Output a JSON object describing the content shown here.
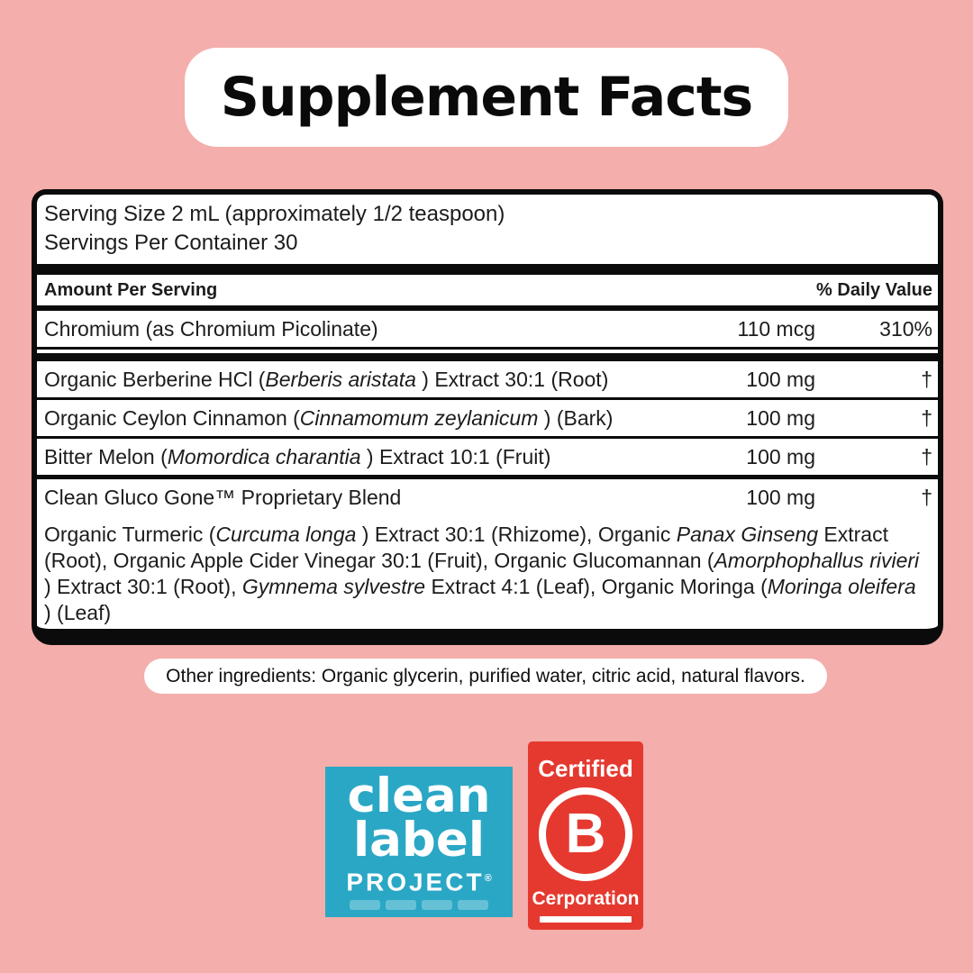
{
  "colors": {
    "background": "#F4AEAB",
    "panel_bg": "#FFFFFF",
    "panel_border": "#0B0B0B",
    "text": "#1C1C1C",
    "clean_label_bg": "#2AA7C5",
    "bcorp_bg": "#E5392F",
    "badge_text": "#FFFFFF"
  },
  "header": {
    "title": "Supplement Facts"
  },
  "panel": {
    "serving_size": "Serving Size 2 mL (approximately 1/2 teaspoon)",
    "servings_per_container": "Servings Per Container 30",
    "amount_header": "Amount Per Serving",
    "dv_header": "% Daily Value",
    "rows": [
      {
        "name_segments": [
          {
            "t": "Chromium (as Chromium Picolinate)"
          }
        ],
        "amount": "110 mcg",
        "dv": "310%"
      },
      {
        "name_segments": [
          {
            "t": "Organic Berberine HCl ("
          },
          {
            "t": "Berberis aristata",
            "i": true
          },
          {
            "t": " ) Extract 30:1 (Root)"
          }
        ],
        "amount": "100 mg",
        "dv": "†"
      },
      {
        "name_segments": [
          {
            "t": "Organic Ceylon Cinnamon ("
          },
          {
            "t": "Cinnamomum zeylanicum",
            "i": true
          },
          {
            "t": " ) (Bark)"
          }
        ],
        "amount": "100 mg",
        "dv": "†"
      },
      {
        "name_segments": [
          {
            "t": "Bitter Melon ("
          },
          {
            "t": "Momordica charantia",
            "i": true
          },
          {
            "t": " ) Extract 10:1 (Fruit)"
          }
        ],
        "amount": "100 mg",
        "dv": "†"
      },
      {
        "name_segments": [
          {
            "t": "Clean Gluco Gone™ Proprietary Blend"
          }
        ],
        "amount": "100 mg",
        "dv": "†"
      }
    ],
    "blend_segments": [
      {
        "t": "Organic Turmeric ("
      },
      {
        "t": "Curcuma longa",
        "i": true
      },
      {
        "t": " ) Extract 30:1 (Rhizome), Organic "
      },
      {
        "t": "Panax Ginseng",
        "i": true
      },
      {
        "t": " Extract (Root), Organic Apple Cider Vinegar 30:1 (Fruit), Organic Glucomannan ("
      },
      {
        "t": "Amorphophallus rivieri",
        "i": true
      },
      {
        "t": " ) Extract 30:1 (Root), "
      },
      {
        "t": "Gymnema sylvestre",
        "i": true
      },
      {
        "t": " Extract 4:1 (Leaf), Organic Moringa ("
      },
      {
        "t": "Moringa oleifera",
        "i": true
      },
      {
        "t": " ) (Leaf)"
      }
    ]
  },
  "footnote": {
    "other_ingredients": "Other ingredients: Organic glycerin, purified water, citric acid, natural flavors."
  },
  "badges": {
    "clean_label": {
      "line1": "clean",
      "line2": "label",
      "line3": "PROJECT",
      "reg": "®"
    },
    "b_corp": {
      "top": "Certified",
      "letter": "B",
      "bottom": "Cerporation"
    }
  }
}
